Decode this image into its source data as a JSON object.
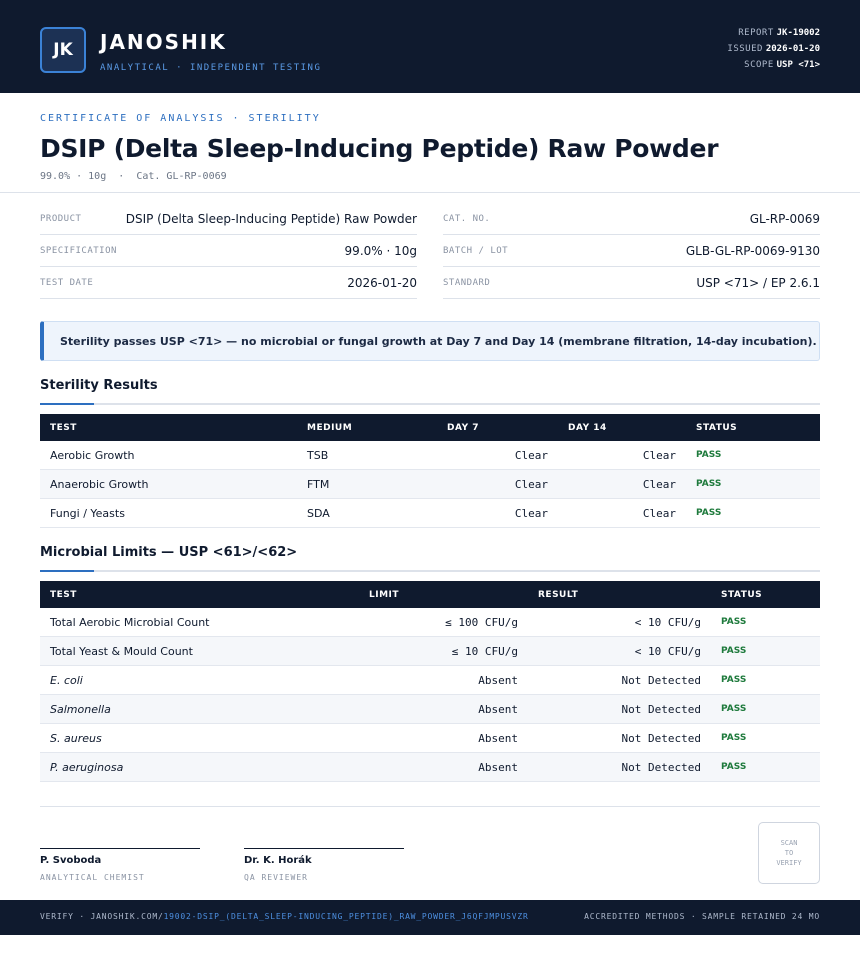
{
  "header": {
    "logo": "JK",
    "brand": "JANOSHIK",
    "tagline": "ANALYTICAL · INDEPENDENT TESTING",
    "meta": [
      {
        "label": "REPORT",
        "value": "JK-19002"
      },
      {
        "label": "ISSUED",
        "value": "2026-01-20"
      },
      {
        "label": "SCOPE",
        "value": "USP <71>"
      }
    ]
  },
  "title": {
    "kicker": "CERTIFICATE OF ANALYSIS · STERILITY",
    "name": "DSIP (Delta Sleep-Inducing Peptide) Raw Powder",
    "sub": "99.0% · 10g  ·  Cat. GL-RP-0069"
  },
  "details": {
    "left": [
      {
        "label": "PRODUCT",
        "value": "DSIP (Delta Sleep-Inducing Peptide) Raw Powder"
      },
      {
        "label": "SPECIFICATION",
        "value": "99.0% · 10g"
      },
      {
        "label": "TEST DATE",
        "value": "2026-01-20"
      }
    ],
    "right": [
      {
        "label": "CAT. NO.",
        "value": "GL-RP-0069"
      },
      {
        "label": "BATCH / LOT",
        "value": "GLB-GL-RP-0069-9130"
      },
      {
        "label": "STANDARD",
        "value": "USP <71> / EP 2.6.1"
      }
    ]
  },
  "notice": "Sterility passes USP <71> — no microbial or fungal growth at Day 7 and Day 14 (membrane filtration, 14-day incubation).",
  "sterility": {
    "title": "Sterility Results",
    "columns": [
      "TEST",
      "MEDIUM",
      "DAY 7",
      "DAY 14",
      "STATUS"
    ],
    "rows": [
      [
        "Aerobic Growth",
        "TSB",
        "Clear",
        "Clear",
        "PASS"
      ],
      [
        "Anaerobic Growth",
        "FTM",
        "Clear",
        "Clear",
        "PASS"
      ],
      [
        "Fungi / Yeasts",
        "SDA",
        "Clear",
        "Clear",
        "PASS"
      ]
    ]
  },
  "microbial": {
    "title": "Microbial Limits — USP <61>/<62>",
    "columns": [
      "TEST",
      "LIMIT",
      "RESULT",
      "STATUS"
    ],
    "rows": [
      [
        "Total Aerobic Microbial Count",
        "≤ 100 CFU/g",
        "< 10 CFU/g",
        "PASS"
      ],
      [
        "Total Yeast & Mould Count",
        "≤ 10 CFU/g",
        "< 10 CFU/g",
        "PASS"
      ],
      [
        "E. coli",
        "Absent",
        "Not Detected",
        "PASS"
      ],
      [
        "Salmonella",
        "Absent",
        "Not Detected",
        "PASS"
      ],
      [
        "S. aureus",
        "Absent",
        "Not Detected",
        "PASS"
      ],
      [
        "P. aeruginosa",
        "Absent",
        "Not Detected",
        "PASS"
      ]
    ],
    "italic": [
      false,
      false,
      true,
      true,
      true,
      true
    ]
  },
  "signatures": [
    {
      "name": "P. Svoboda",
      "role": "ANALYTICAL CHEMIST"
    },
    {
      "name": "Dr. K. Horák",
      "role": "QA REVIEWER"
    }
  ],
  "qr": "SCAN TO VERIFY",
  "footer": {
    "prefix": "VERIFY · JANOSHIK.COM/",
    "link": "19002-DSIP_(DELTA_SLEEP-INDUCING_PEPTIDE)_RAW_POWDER_J6QFJMPUSVZR",
    "right": "ACCREDITED METHODS · SAMPLE RETAINED 24 MO"
  }
}
